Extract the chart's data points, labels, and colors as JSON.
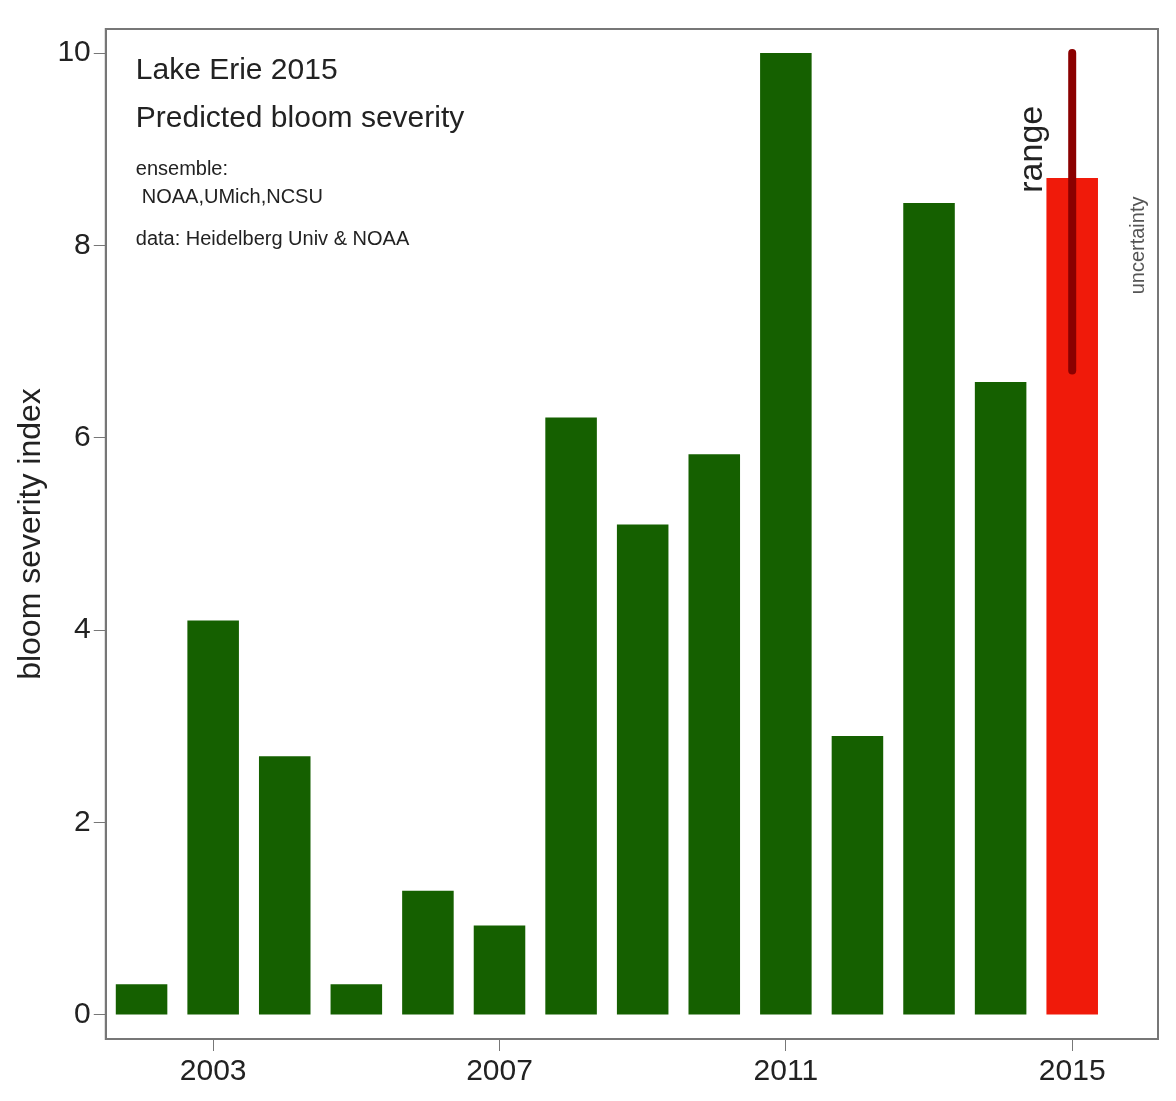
{
  "chart_data": {
    "type": "bar",
    "title": "Lake Erie 2015",
    "subtitle": "Predicted bloom severity",
    "ylabel": "bloom severity index",
    "categories": [
      null,
      "2003",
      null,
      null,
      null,
      "2007",
      null,
      null,
      null,
      "2011",
      null,
      null,
      null,
      "2015"
    ],
    "values": [
      0.32,
      4.1,
      2.69,
      0.32,
      1.29,
      0.93,
      6.21,
      5.1,
      5.83,
      10.0,
      2.9,
      8.44,
      6.58,
      8.7
    ],
    "colors": [
      "#156000",
      "#156000",
      "#156000",
      "#156000",
      "#156000",
      "#156000",
      "#156000",
      "#156000",
      "#156000",
      "#156000",
      "#156000",
      "#156000",
      "#156000",
      "#f01a0a"
    ],
    "errors": [
      null,
      null,
      null,
      null,
      null,
      null,
      null,
      null,
      null,
      null,
      null,
      null,
      null,
      [
        6.7,
        10.0
      ]
    ],
    "ylim": [
      -0.25,
      10.25
    ],
    "yticks": [
      0,
      2,
      4,
      6,
      8,
      10
    ],
    "grid": false,
    "legend": false,
    "annotations": [
      "ensemble:",
      "NOAA,UMich,NCSU",
      "data: Heidelberg Univ & NOAA",
      {
        "text": "range",
        "x": "2015",
        "y": 9.0
      },
      {
        "text": "uncertainty",
        "x": "2015",
        "y": 8.0
      }
    ]
  }
}
